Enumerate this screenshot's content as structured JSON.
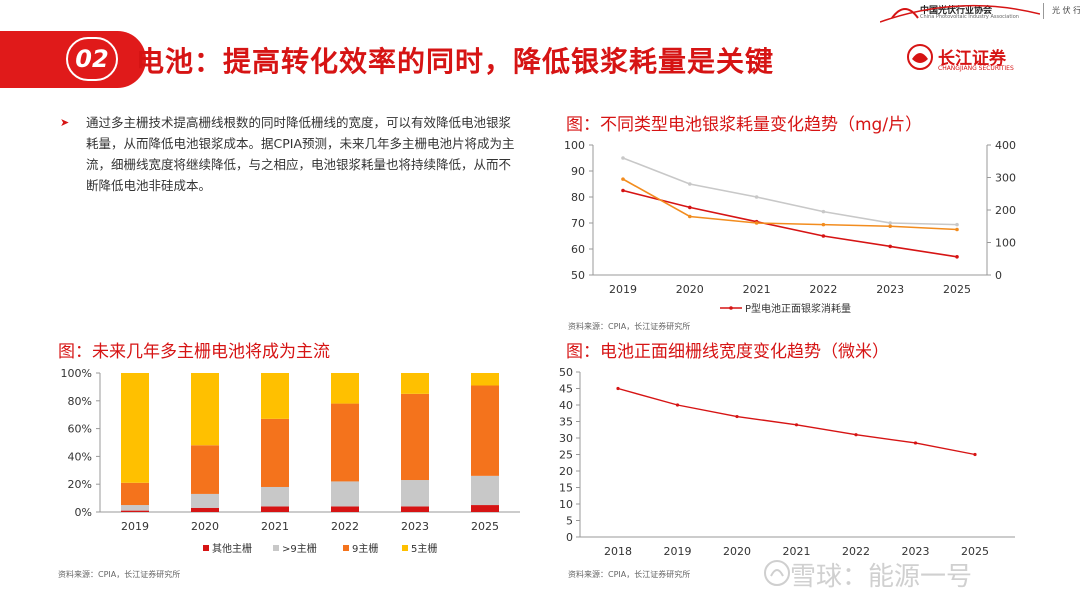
{
  "header": {
    "association_name": "中国光伏行业协会",
    "association_en": "China Photovoltaic Industry Association",
    "right_text": "光 伏 行"
  },
  "section": {
    "number": "02",
    "title": "电池：提高转化效率的同时，降低银浆耗量是关键"
  },
  "logo": {
    "cn": "长江证券",
    "en": "CHANGJIANG SECURITIES"
  },
  "bullet": {
    "text": "通过多主栅技术提高栅线根数的同时降低栅线的宽度，可以有效降低电池银浆耗量，从而降低电池银浆成本。据CPIA预测，未来几年多主栅电池片将成为主流，细栅线宽度将继续降低，与之相应，电池银浆耗量也将持续降低，从而不断降低电池非硅成本。"
  },
  "chart_titles": {
    "silver": "图：不同类型电池银浆耗量变化趋势（mg/片）",
    "busbar": "图：未来几年多主栅电池将成为主流",
    "finger": "图：电池正面细栅线宽度变化趋势（微米）"
  },
  "sources": {
    "silver": "资料来源：CPIA，长江证券研究所",
    "busbar": "资料来源：CPIA，长江证券研究所",
    "finger": "资料来源：CPIA，长江证券研究所"
  },
  "watermark": "雪球：能源一号",
  "colors": {
    "accent": "#d61414",
    "orange": "#f28c1e",
    "gray": "#c8c8c8",
    "yellow": "#ffc000",
    "orange_bar": "#f4731c"
  },
  "chart_data": [
    {
      "type": "line",
      "title": "图：不同类型电池银浆耗量变化趋势（mg/片）",
      "x": [
        "2019",
        "2020",
        "2021",
        "2022",
        "2023",
        "2025"
      ],
      "ylim": [
        50,
        100
      ],
      "yticks": [
        50,
        60,
        70,
        80,
        90,
        100
      ],
      "y2lim": [
        0,
        400
      ],
      "y2ticks": [
        0,
        100,
        200,
        300,
        400
      ],
      "series": [
        {
          "name": "P型电池正面银浆消耗量",
          "axis": "left",
          "color": "#d61414",
          "values": [
            82.5,
            76,
            70.5,
            65,
            61,
            57
          ]
        },
        {
          "axis": "right",
          "color": "#c8c8c8",
          "values": [
            360,
            280,
            240,
            195,
            160,
            155
          ]
        },
        {
          "axis": "right",
          "color": "#f28c1e",
          "values": [
            295,
            180,
            160,
            155,
            150,
            140
          ]
        }
      ],
      "legend": "bottom"
    },
    {
      "type": "bar",
      "stacked": true,
      "title": "图：未来几年多主栅电池将成为主流",
      "categories": [
        "2019",
        "2020",
        "2021",
        "2022",
        "2023",
        "2025"
      ],
      "ylim": [
        0,
        100
      ],
      "yticks": [
        "0%",
        "20%",
        "40%",
        "60%",
        "80%",
        "100%"
      ],
      "series": [
        {
          "name": "其他主栅",
          "color": "#d61414",
          "values": [
            1,
            3,
            4,
            4,
            4,
            5
          ]
        },
        {
          "name": ">9主栅",
          "color": "#c8c8c8",
          "values": [
            4,
            10,
            14,
            18,
            19,
            21
          ]
        },
        {
          "name": "9主栅",
          "color": "#f4731c",
          "values": [
            16,
            35,
            49,
            56,
            62,
            65
          ]
        },
        {
          "name": "5主栅",
          "color": "#ffc000",
          "values": [
            79,
            52,
            33,
            22,
            15,
            9
          ]
        }
      ],
      "legend": "bottom"
    },
    {
      "type": "line",
      "title": "图：电池正面细栅线宽度变化趋势（微米）",
      "x": [
        "2018",
        "2019",
        "2020",
        "2021",
        "2022",
        "2023",
        "2025"
      ],
      "ylim": [
        0,
        50
      ],
      "yticks": [
        0,
        5,
        10,
        15,
        20,
        25,
        30,
        35,
        40,
        45,
        50
      ],
      "series": [
        {
          "color": "#d61414",
          "values": [
            45,
            40,
            36.5,
            34,
            31,
            28.5,
            25
          ]
        }
      ]
    }
  ]
}
